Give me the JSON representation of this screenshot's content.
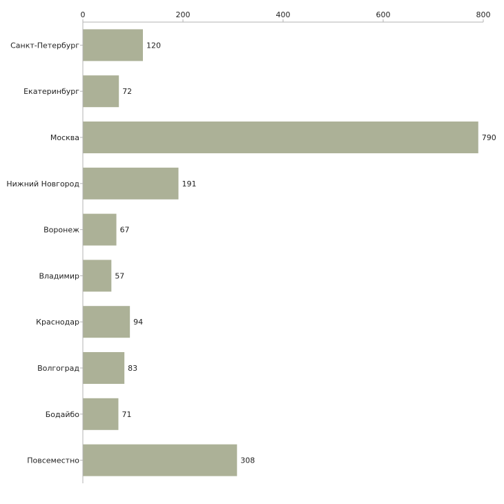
{
  "chart_data": {
    "type": "bar",
    "orientation": "horizontal",
    "title": "",
    "xlabel": "",
    "ylabel": "",
    "categories": [
      "Санкт-Петербург",
      "Екатеринбург",
      "Москва",
      "Нижний Новгород",
      "Воронеж",
      "Владимир",
      "Краснодар",
      "Волгоград",
      "Бодайбо",
      "Повсеместно"
    ],
    "values": [
      120,
      72,
      790,
      191,
      67,
      57,
      94,
      83,
      71,
      308
    ],
    "xlim": [
      0,
      800
    ],
    "xticks": [
      0,
      200,
      400,
      600,
      800
    ],
    "axis_position": "top",
    "grid": false,
    "legend": "none",
    "bar_color": "#acb197",
    "axis_color": "#b3b3b3"
  }
}
